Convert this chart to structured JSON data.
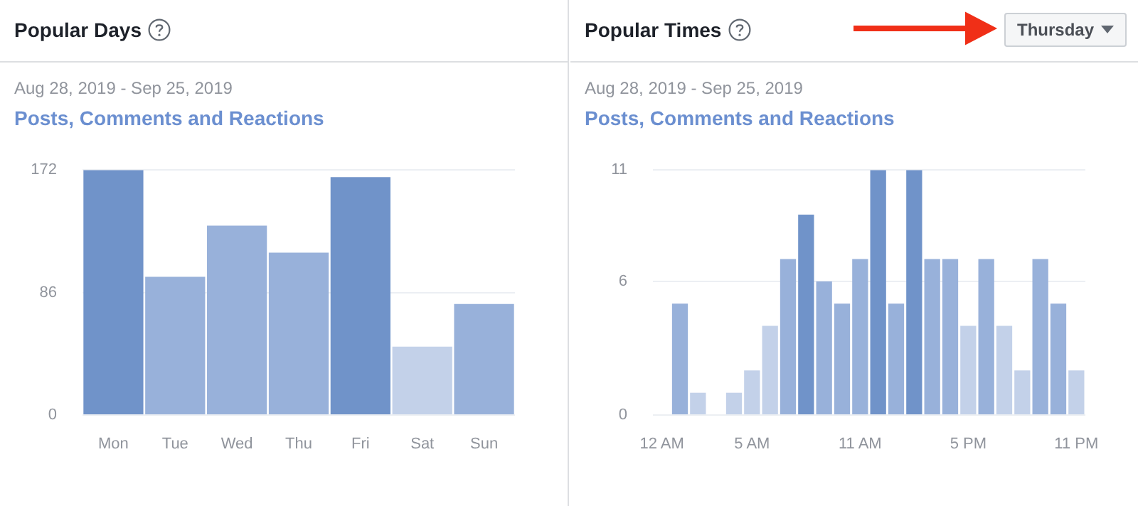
{
  "chart_data": [
    {
      "type": "bar",
      "title": "Popular Days",
      "subtitle": "Aug 28, 2019 - Sep 25, 2019",
      "ylabel": "Posts, Comments and Reactions",
      "categories": [
        "Mon",
        "Tue",
        "Wed",
        "Thu",
        "Fri",
        "Sat",
        "Sun"
      ],
      "values": [
        172,
        97,
        133,
        114,
        167,
        48,
        78
      ],
      "colors": [
        "#7093c9",
        "#98b1da",
        "#98b1da",
        "#98b1da",
        "#7093c9",
        "#c3d1e9",
        "#98b1da"
      ],
      "ylim": [
        0,
        172
      ],
      "yticks": [
        0,
        86,
        172
      ],
      "grid": "y",
      "legend": false
    },
    {
      "type": "bar",
      "title": "Popular Times",
      "subtitle": "Aug 28, 2019 - Sep 25, 2019",
      "ylabel": "Posts, Comments and Reactions",
      "annotations": [
        "Thursday"
      ],
      "categories": [
        "12 AM",
        null,
        null,
        null,
        null,
        "5 AM",
        null,
        null,
        null,
        null,
        null,
        "11 AM",
        null,
        null,
        null,
        null,
        null,
        "5 PM",
        null,
        null,
        null,
        null,
        null,
        "11 PM"
      ],
      "values": [
        0,
        5,
        1,
        0,
        1,
        2,
        4,
        7,
        9,
        6,
        5,
        7,
        11,
        5,
        11,
        7,
        7,
        4,
        7,
        4,
        2,
        7,
        5,
        2
      ],
      "colors": [
        "#c3d1e9",
        "#98b1da",
        "#c3d1e9",
        "#c3d1e9",
        "#c3d1e9",
        "#c3d1e9",
        "#c3d1e9",
        "#98b1da",
        "#7093c9",
        "#98b1da",
        "#98b1da",
        "#98b1da",
        "#7093c9",
        "#98b1da",
        "#7093c9",
        "#98b1da",
        "#98b1da",
        "#c3d1e9",
        "#98b1da",
        "#c3d1e9",
        "#c3d1e9",
        "#98b1da",
        "#98b1da",
        "#c3d1e9"
      ],
      "ylim": [
        0,
        11
      ],
      "yticks": [
        0,
        6,
        11
      ],
      "grid": "y",
      "legend": false
    }
  ]
}
